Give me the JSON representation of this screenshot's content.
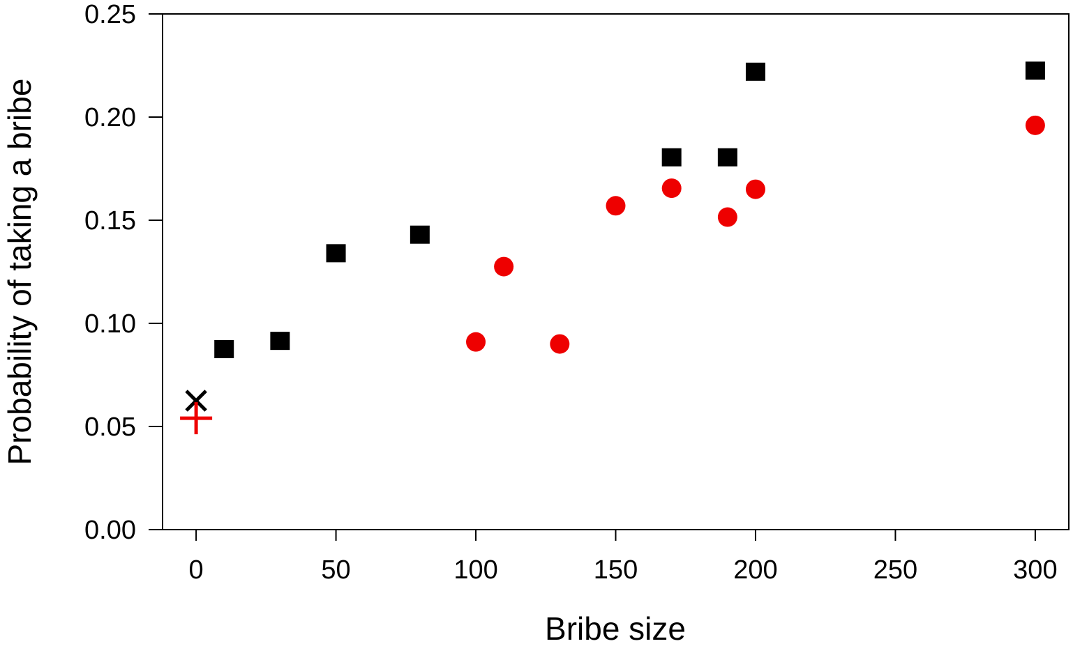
{
  "chart_data": {
    "type": "scatter",
    "title": "",
    "xlabel": "Bribe size",
    "ylabel": "Probability of taking a bribe",
    "xlim": [
      -12,
      312
    ],
    "ylim": [
      0,
      0.25
    ],
    "xticks": [
      0,
      50,
      100,
      150,
      200,
      250,
      300
    ],
    "xtick_labels": [
      "0",
      "50",
      "100",
      "150",
      "200",
      "250",
      "300"
    ],
    "yticks": [
      0,
      0.05,
      0.1,
      0.15,
      0.2,
      0.25
    ],
    "ytick_labels": [
      "0.00",
      "0.05",
      "0.10",
      "0.15",
      "0.20",
      "0.25"
    ],
    "grid": false,
    "legend": "none",
    "series": [
      {
        "marker": "square",
        "color": "#000000",
        "points": [
          {
            "x": 10,
            "y": 0.0875
          },
          {
            "x": 30,
            "y": 0.0915
          },
          {
            "x": 50,
            "y": 0.134
          },
          {
            "x": 80,
            "y": 0.143
          },
          {
            "x": 170,
            "y": 0.1805
          },
          {
            "x": 190,
            "y": 0.1805
          },
          {
            "x": 200,
            "y": 0.222
          },
          {
            "x": 300,
            "y": 0.2225
          }
        ]
      },
      {
        "marker": "circle",
        "color": "#ee0000",
        "points": [
          {
            "x": 100,
            "y": 0.091
          },
          {
            "x": 110,
            "y": 0.1275
          },
          {
            "x": 130,
            "y": 0.09
          },
          {
            "x": 150,
            "y": 0.157
          },
          {
            "x": 170,
            "y": 0.1655
          },
          {
            "x": 190,
            "y": 0.1515
          },
          {
            "x": 200,
            "y": 0.165
          },
          {
            "x": 300,
            "y": 0.196
          }
        ]
      },
      {
        "marker": "x",
        "color": "#000000",
        "points": [
          {
            "x": 0,
            "y": 0.0625
          }
        ]
      },
      {
        "marker": "plus",
        "color": "#ee0000",
        "points": [
          {
            "x": 0,
            "y": 0.054
          }
        ]
      }
    ]
  }
}
